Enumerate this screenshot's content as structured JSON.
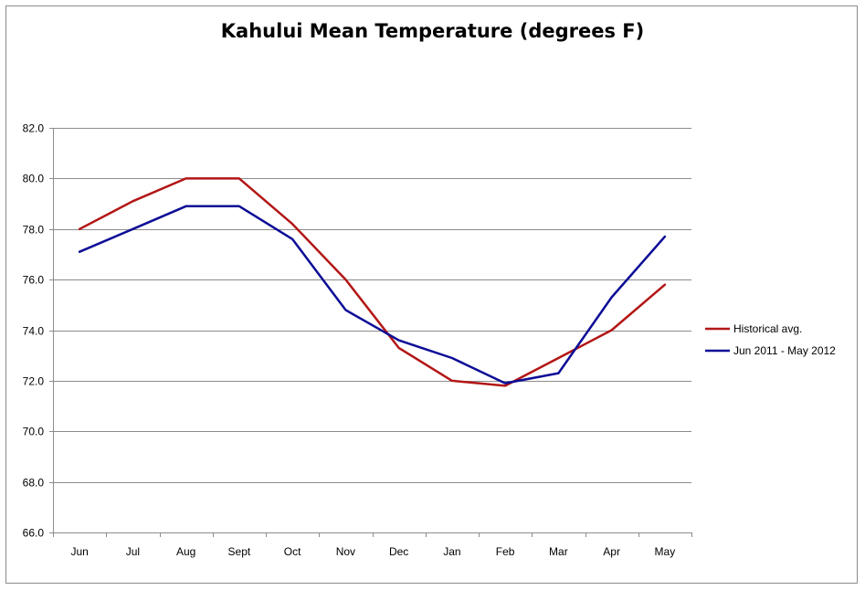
{
  "chart_data": {
    "type": "line",
    "title": "Kahului Mean Temperature (degrees F)",
    "xlabel": "",
    "ylabel": "",
    "categories": [
      "Jun",
      "Jul",
      "Aug",
      "Sept",
      "Oct",
      "Nov",
      "Dec",
      "Jan",
      "Feb",
      "Mar",
      "Apr",
      "May"
    ],
    "ylim": [
      66.0,
      82.0
    ],
    "ytick_step": 2.0,
    "ytick_decimals": 1,
    "grid": true,
    "legend_position": "right",
    "series": [
      {
        "name": "Historical avg.",
        "color": "#b31616",
        "values": [
          78.0,
          79.1,
          80.0,
          80.0,
          78.2,
          76.0,
          73.3,
          72.0,
          71.8,
          72.9,
          74.0,
          75.8
        ]
      },
      {
        "name": "Jun 2011 - May 2012",
        "color": "#0c0c96",
        "values": [
          77.1,
          78.0,
          78.9,
          78.9,
          77.6,
          74.8,
          73.6,
          72.9,
          71.9,
          72.3,
          75.3,
          77.7
        ]
      }
    ]
  }
}
